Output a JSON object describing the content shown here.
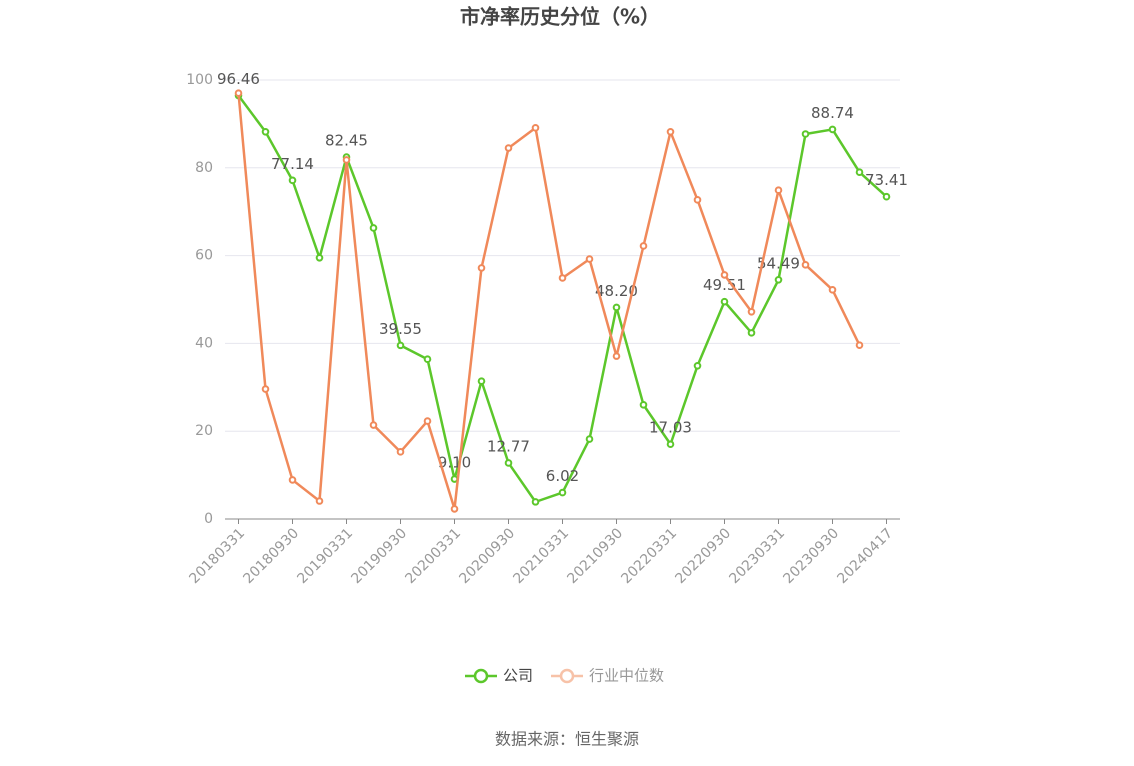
{
  "chart_data": {
    "type": "line",
    "title": "市净率历史分位（%）",
    "categories": [
      "20180331",
      null,
      "20180930",
      null,
      "20190331",
      null,
      "20190930",
      null,
      "20200331",
      null,
      "20200930",
      null,
      "20210331",
      null,
      "20210930",
      null,
      "20220331",
      null,
      "20220930",
      null,
      "20230331",
      null,
      "20230930",
      null,
      "20240417"
    ],
    "series": [
      {
        "name": "公司",
        "color": "#5cc72b",
        "values": [
          96.46,
          88.2,
          77.14,
          59.5,
          82.45,
          66.3,
          39.55,
          36.4,
          9.1,
          31.4,
          12.77,
          3.9,
          6.02,
          18.2,
          48.2,
          26.0,
          17.03,
          34.9,
          49.51,
          42.4,
          54.49,
          87.7,
          88.74,
          79.0,
          73.41
        ],
        "value_labels": [
          "96.46",
          null,
          "77.14",
          null,
          "82.45",
          null,
          "39.55",
          null,
          "9.10",
          null,
          "12.77",
          null,
          "6.02",
          null,
          "48.20",
          null,
          "17.03",
          null,
          "49.51",
          null,
          "54.49",
          null,
          "88.74",
          null,
          "73.41"
        ]
      },
      {
        "name": "行业中位数",
        "color": "#f0895a",
        "values": [
          97.0,
          29.6,
          8.9,
          4.1,
          81.8,
          21.4,
          15.3,
          22.3,
          2.3,
          57.2,
          84.5,
          89.1,
          54.9,
          59.2,
          37.1,
          62.2,
          88.2,
          72.7,
          55.6,
          47.2,
          74.9,
          57.9,
          52.2,
          39.6,
          null
        ]
      }
    ],
    "ylim": [
      0,
      100
    ],
    "yticks": [
      0,
      20,
      40,
      60,
      80,
      100
    ],
    "grid": true,
    "legend": "bottom",
    "source": "数据来源：恒生聚源"
  }
}
